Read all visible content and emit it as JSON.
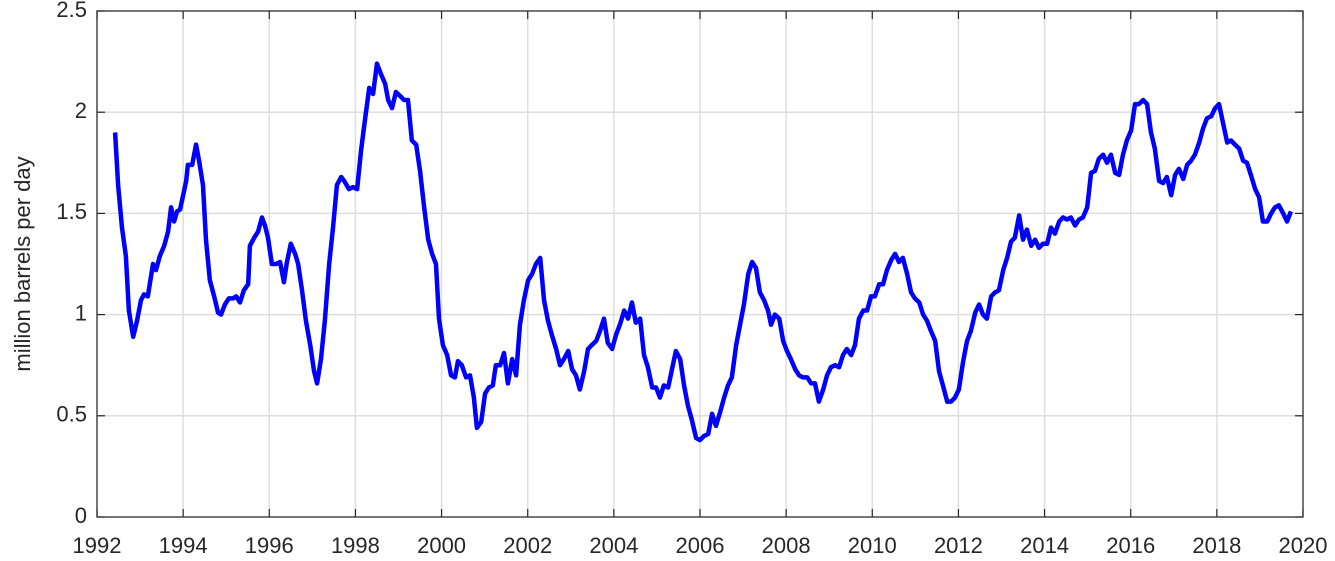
{
  "chart_data": {
    "type": "line",
    "y_label": "million barrels per day",
    "xlim": [
      1992,
      2020
    ],
    "xticks": [
      1992,
      1994,
      1996,
      1998,
      2000,
      2002,
      2004,
      2006,
      2008,
      2010,
      2012,
      2014,
      2016,
      2018,
      2020
    ],
    "ylim": [
      0,
      2.5
    ],
    "yticks": [
      0,
      0.5,
      1,
      1.5,
      2,
      2.5
    ],
    "grid": true,
    "x": [
      1992.42,
      1992.49,
      1992.58,
      1992.67,
      1992.74,
      1992.84,
      1992.93,
      1993.02,
      1993.09,
      1993.18,
      1993.3,
      1993.37,
      1993.46,
      1993.56,
      1993.65,
      1993.72,
      1993.79,
      1993.86,
      1993.93,
      1994.07,
      1994.11,
      1994.21,
      1994.3,
      1994.37,
      1994.46,
      1994.53,
      1994.62,
      1994.72,
      1994.81,
      1994.88,
      1994.97,
      1995.06,
      1995.16,
      1995.23,
      1995.32,
      1995.41,
      1995.51,
      1995.55,
      1995.65,
      1995.74,
      1995.83,
      1995.9,
      1995.97,
      1996.06,
      1996.16,
      1996.25,
      1996.34,
      1996.41,
      1996.5,
      1996.6,
      1996.67,
      1996.76,
      1996.85,
      1996.95,
      1997.04,
      1997.11,
      1997.2,
      1997.29,
      1997.39,
      1997.48,
      1997.57,
      1997.67,
      1997.74,
      1997.85,
      1997.94,
      1998.04,
      1998.13,
      1998.22,
      1998.32,
      1998.41,
      1998.5,
      1998.59,
      1998.69,
      1998.76,
      1998.85,
      1998.94,
      1999.04,
      1999.13,
      1999.22,
      1999.31,
      1999.41,
      1999.5,
      1999.59,
      1999.69,
      1999.78,
      1999.87,
      1999.94,
      2000.03,
      2000.13,
      2000.22,
      2000.31,
      2000.38,
      2000.47,
      2000.57,
      2000.66,
      2000.75,
      2000.82,
      2000.92,
      2001.01,
      2001.1,
      2001.19,
      2001.26,
      2001.36,
      2001.45,
      2001.54,
      2001.64,
      2001.73,
      2001.82,
      2001.91,
      2002.01,
      2002.1,
      2002.19,
      2002.29,
      2002.38,
      2002.47,
      2002.56,
      2002.66,
      2002.75,
      2002.84,
      2002.94,
      2003.03,
      2003.12,
      2003.21,
      2003.31,
      2003.4,
      2003.49,
      2003.59,
      2003.68,
      2003.77,
      2003.86,
      2003.96,
      2004.05,
      2004.14,
      2004.24,
      2004.33,
      2004.42,
      2004.51,
      2004.61,
      2004.7,
      2004.79,
      2004.89,
      2004.98,
      2005.07,
      2005.16,
      2005.26,
      2005.35,
      2005.44,
      2005.54,
      2005.63,
      2005.72,
      2005.81,
      2005.91,
      2006.0,
      2006.09,
      2006.19,
      2006.28,
      2006.37,
      2006.47,
      2006.56,
      2006.65,
      2006.74,
      2006.84,
      2006.93,
      2007.02,
      2007.12,
      2007.21,
      2007.3,
      2007.39,
      2007.49,
      2007.58,
      2007.65,
      2007.74,
      2007.84,
      2007.93,
      2008.02,
      2008.11,
      2008.21,
      2008.3,
      2008.39,
      2008.49,
      2008.58,
      2008.67,
      2008.76,
      2008.86,
      2008.95,
      2009.04,
      2009.14,
      2009.23,
      2009.32,
      2009.41,
      2009.51,
      2009.6,
      2009.69,
      2009.79,
      2009.88,
      2009.97,
      2010.06,
      2010.16,
      2010.25,
      2010.34,
      2010.44,
      2010.53,
      2010.62,
      2010.71,
      2010.81,
      2010.9,
      2010.99,
      2011.09,
      2011.18,
      2011.27,
      2011.36,
      2011.46,
      2011.55,
      2011.64,
      2011.74,
      2011.83,
      2011.92,
      2012.01,
      2012.11,
      2012.2,
      2012.29,
      2012.39,
      2012.48,
      2012.57,
      2012.66,
      2012.76,
      2012.85,
      2012.94,
      2013.04,
      2013.13,
      2013.22,
      2013.31,
      2013.41,
      2013.5,
      2013.59,
      2013.69,
      2013.78,
      2013.87,
      2013.96,
      2014.06,
      2014.15,
      2014.24,
      2014.34,
      2014.43,
      2014.52,
      2014.61,
      2014.71,
      2014.8,
      2014.89,
      2014.99,
      2015.08,
      2015.17,
      2015.26,
      2015.36,
      2015.45,
      2015.54,
      2015.64,
      2015.73,
      2015.82,
      2015.91,
      2016.01,
      2016.1,
      2016.19,
      2016.29,
      2016.38,
      2016.47,
      2016.56,
      2016.66,
      2016.75,
      2016.84,
      2016.94,
      2017.03,
      2017.12,
      2017.22,
      2017.31,
      2017.4,
      2017.49,
      2017.59,
      2017.68,
      2017.77,
      2017.87,
      2017.96,
      2018.05,
      2018.14,
      2018.24,
      2018.33,
      2018.42,
      2018.52,
      2018.61,
      2018.7,
      2018.79,
      2018.89,
      2018.98,
      2019.07,
      2019.17,
      2019.26,
      2019.35,
      2019.44,
      2019.54,
      2019.63,
      2019.72
    ],
    "series": [
      {
        "color": "#0000ff",
        "values": [
          1.9,
          1.64,
          1.43,
          1.29,
          1.02,
          0.89,
          0.97,
          1.07,
          1.1,
          1.09,
          1.25,
          1.22,
          1.29,
          1.34,
          1.41,
          1.53,
          1.46,
          1.51,
          1.52,
          1.66,
          1.74,
          1.74,
          1.84,
          1.76,
          1.64,
          1.37,
          1.17,
          1.09,
          1.01,
          1.0,
          1.05,
          1.08,
          1.08,
          1.09,
          1.06,
          1.12,
          1.15,
          1.34,
          1.38,
          1.41,
          1.48,
          1.44,
          1.38,
          1.25,
          1.25,
          1.26,
          1.16,
          1.26,
          1.35,
          1.3,
          1.25,
          1.12,
          0.97,
          0.85,
          0.72,
          0.66,
          0.78,
          0.97,
          1.25,
          1.43,
          1.64,
          1.68,
          1.66,
          1.62,
          1.63,
          1.62,
          1.81,
          1.96,
          2.12,
          2.09,
          2.24,
          2.19,
          2.14,
          2.06,
          2.02,
          2.1,
          2.08,
          2.06,
          2.06,
          1.86,
          1.84,
          1.71,
          1.54,
          1.37,
          1.3,
          1.25,
          0.98,
          0.85,
          0.8,
          0.7,
          0.69,
          0.77,
          0.75,
          0.69,
          0.7,
          0.59,
          0.44,
          0.47,
          0.61,
          0.64,
          0.65,
          0.75,
          0.75,
          0.81,
          0.66,
          0.78,
          0.7,
          0.95,
          1.07,
          1.17,
          1.2,
          1.25,
          1.28,
          1.07,
          0.97,
          0.9,
          0.83,
          0.75,
          0.78,
          0.82,
          0.73,
          0.7,
          0.63,
          0.72,
          0.83,
          0.85,
          0.87,
          0.92,
          0.98,
          0.86,
          0.83,
          0.9,
          0.95,
          1.02,
          0.98,
          1.06,
          0.96,
          0.98,
          0.8,
          0.74,
          0.64,
          0.64,
          0.59,
          0.65,
          0.64,
          0.73,
          0.82,
          0.78,
          0.65,
          0.55,
          0.48,
          0.39,
          0.38,
          0.4,
          0.41,
          0.51,
          0.45,
          0.52,
          0.59,
          0.65,
          0.69,
          0.85,
          0.95,
          1.05,
          1.2,
          1.26,
          1.23,
          1.11,
          1.07,
          1.02,
          0.95,
          1.0,
          0.98,
          0.87,
          0.82,
          0.78,
          0.73,
          0.7,
          0.69,
          0.69,
          0.66,
          0.66,
          0.57,
          0.63,
          0.7,
          0.74,
          0.75,
          0.74,
          0.8,
          0.83,
          0.8,
          0.85,
          0.98,
          1.02,
          1.02,
          1.09,
          1.09,
          1.15,
          1.15,
          1.22,
          1.27,
          1.3,
          1.26,
          1.28,
          1.2,
          1.11,
          1.08,
          1.06,
          1.0,
          0.97,
          0.92,
          0.87,
          0.72,
          0.65,
          0.57,
          0.57,
          0.59,
          0.63,
          0.77,
          0.87,
          0.92,
          1.01,
          1.05,
          1.0,
          0.98,
          1.09,
          1.11,
          1.12,
          1.22,
          1.28,
          1.36,
          1.38,
          1.49,
          1.37,
          1.42,
          1.34,
          1.37,
          1.33,
          1.35,
          1.35,
          1.43,
          1.4,
          1.46,
          1.48,
          1.47,
          1.48,
          1.44,
          1.47,
          1.48,
          1.53,
          1.7,
          1.71,
          1.77,
          1.79,
          1.75,
          1.79,
          1.7,
          1.69,
          1.79,
          1.86,
          1.91,
          2.04,
          2.04,
          2.06,
          2.04,
          1.9,
          1.82,
          1.66,
          1.65,
          1.68,
          1.59,
          1.69,
          1.72,
          1.67,
          1.74,
          1.76,
          1.79,
          1.85,
          1.92,
          1.97,
          1.98,
          2.02,
          2.04,
          1.95,
          1.85,
          1.86,
          1.84,
          1.82,
          1.76,
          1.75,
          1.69,
          1.62,
          1.58,
          1.46,
          1.46,
          1.5,
          1.53,
          1.54,
          1.5,
          1.46,
          1.51
        ]
      }
    ]
  }
}
